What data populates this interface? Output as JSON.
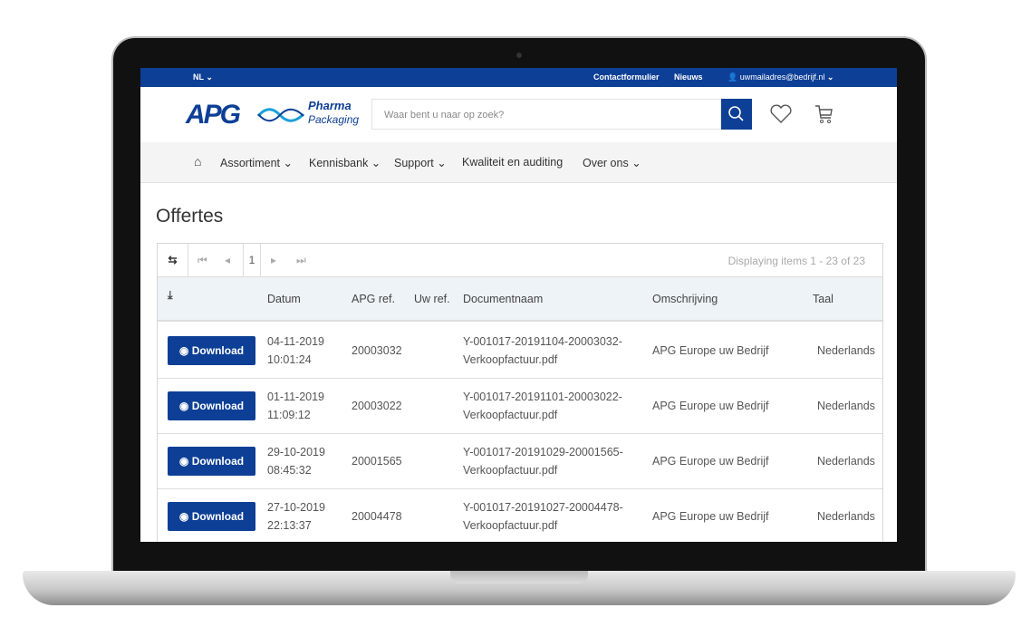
{
  "topbar": {
    "language": "NL",
    "contact": "Contactformulier",
    "news": "Nieuws",
    "account": "uwmailadres@bedrijf.nl"
  },
  "header": {
    "logo_text": "APG",
    "logo_sub1": "Pharma",
    "logo_sub2": "Packaging",
    "search_placeholder": "Waar bent u naar op zoek?"
  },
  "nav": [
    "Assortiment",
    "Kennisbank",
    "Support",
    "Kwaliteit en auditing",
    "Over ons"
  ],
  "page": {
    "title": "Offertes"
  },
  "grid": {
    "page": "1",
    "status": "Displaying items 1 - 23 of 23",
    "columns": [
      "Datum",
      "APG ref.",
      "Uw ref.",
      "Documentnaam",
      "Omschrijving",
      "Taal"
    ],
    "button_label": "Download",
    "rows": [
      {
        "date": "04-11-2019",
        "time": "10:01:24",
        "apg": "20003032",
        "uw": "",
        "doc1": "Y-001017-20191104-20003032-",
        "doc2": "Verkoopfactuur.pdf",
        "desc": "APG Europe uw Bedrijf",
        "lang": "Nederlands"
      },
      {
        "date": "01-11-2019",
        "time": "11:09:12",
        "apg": "20003022",
        "uw": "",
        "doc1": "Y-001017-20191101-20003022-",
        "doc2": "Verkoopfactuur.pdf",
        "desc": "APG Europe uw Bedrijf",
        "lang": "Nederlands"
      },
      {
        "date": "29-10-2019",
        "time": "08:45:32",
        "apg": "20001565",
        "uw": "",
        "doc1": "Y-001017-20191029-20001565-",
        "doc2": "Verkoopfactuur.pdf",
        "desc": "APG Europe uw Bedrijf",
        "lang": "Nederlands"
      },
      {
        "date": "27-10-2019",
        "time": "22:13:37",
        "apg": "20004478",
        "uw": "",
        "doc1": "Y-001017-20191027-20004478-",
        "doc2": "Verkoopfactuur.pdf",
        "desc": "APG Europe uw Bedrijf",
        "lang": "Nederlands"
      }
    ]
  },
  "colors": {
    "brand": "#0d3f96"
  }
}
